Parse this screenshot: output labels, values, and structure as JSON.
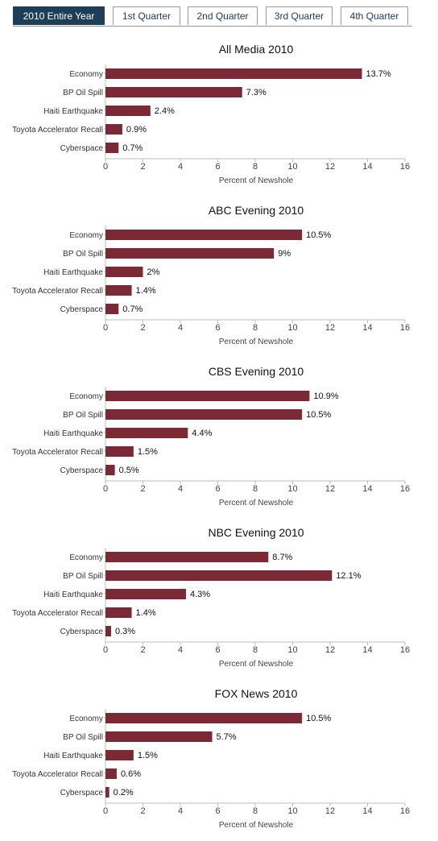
{
  "tabs": [
    {
      "label": "2010 Entire Year",
      "active": true
    },
    {
      "label": "1st Quarter",
      "active": false
    },
    {
      "label": "2nd Quarter",
      "active": false
    },
    {
      "label": "3rd Quarter",
      "active": false
    },
    {
      "label": "4th Quarter",
      "active": false
    }
  ],
  "colors": {
    "bar": "#7b2a35",
    "tab_active": "#1e3d57"
  },
  "chart_data": [
    {
      "type": "bar",
      "orientation": "horizontal",
      "title": "All Media 2010",
      "categories": [
        "Economy",
        "BP Oil Spill",
        "Haiti Earthquake",
        "Toyota Accelerator Recall",
        "Cyberspace"
      ],
      "values": [
        13.7,
        7.3,
        2.4,
        0.9,
        0.7
      ],
      "value_labels": [
        "13.7%",
        "7.3%",
        "2.4%",
        "0.9%",
        "0.7%"
      ],
      "xlabel": "Percent of Newshole",
      "xlim": [
        0,
        16
      ],
      "xticks": [
        0,
        2,
        4,
        6,
        8,
        10,
        12,
        14,
        16
      ]
    },
    {
      "type": "bar",
      "orientation": "horizontal",
      "title": "ABC Evening 2010",
      "categories": [
        "Economy",
        "BP Oil Spill",
        "Haiti Earthquake",
        "Toyota Accelerator Recall",
        "Cyberspace"
      ],
      "values": [
        10.5,
        9,
        2,
        1.4,
        0.7
      ],
      "value_labels": [
        "10.5%",
        "9%",
        "2%",
        "1.4%",
        "0.7%"
      ],
      "xlabel": "Percent of Newshole",
      "xlim": [
        0,
        16
      ],
      "xticks": [
        0,
        2,
        4,
        6,
        8,
        10,
        12,
        14,
        16
      ]
    },
    {
      "type": "bar",
      "orientation": "horizontal",
      "title": "CBS Evening 2010",
      "categories": [
        "Economy",
        "BP Oil Spill",
        "Haiti Earthquake",
        "Toyota Accelerator Recall",
        "Cyberspace"
      ],
      "values": [
        10.9,
        10.5,
        4.4,
        1.5,
        0.5
      ],
      "value_labels": [
        "10.9%",
        "10.5%",
        "4.4%",
        "1.5%",
        "0.5%"
      ],
      "xlabel": "Percent of Newshole",
      "xlim": [
        0,
        16
      ],
      "xticks": [
        0,
        2,
        4,
        6,
        8,
        10,
        12,
        14,
        16
      ]
    },
    {
      "type": "bar",
      "orientation": "horizontal",
      "title": "NBC Evening 2010",
      "categories": [
        "Economy",
        "BP Oil Spill",
        "Haiti Earthquake",
        "Toyota Accelerator Recall",
        "Cyberspace"
      ],
      "values": [
        8.7,
        12.1,
        4.3,
        1.4,
        0.3
      ],
      "value_labels": [
        "8.7%",
        "12.1%",
        "4.3%",
        "1.4%",
        "0.3%"
      ],
      "xlabel": "Percent of Newshole",
      "xlim": [
        0,
        16
      ],
      "xticks": [
        0,
        2,
        4,
        6,
        8,
        10,
        12,
        14,
        16
      ]
    },
    {
      "type": "bar",
      "orientation": "horizontal",
      "title": "FOX News 2010",
      "categories": [
        "Economy",
        "BP Oil Spill",
        "Haiti Earthquake",
        "Toyota Accelerator Recall",
        "Cyberspace"
      ],
      "values": [
        10.5,
        5.7,
        1.5,
        0.6,
        0.2
      ],
      "value_labels": [
        "10.5%",
        "5.7%",
        "1.5%",
        "0.6%",
        "0.2%"
      ],
      "xlabel": "Percent of Newshole",
      "xlim": [
        0,
        16
      ],
      "xticks": [
        0,
        2,
        4,
        6,
        8,
        10,
        12,
        14,
        16
      ]
    }
  ]
}
